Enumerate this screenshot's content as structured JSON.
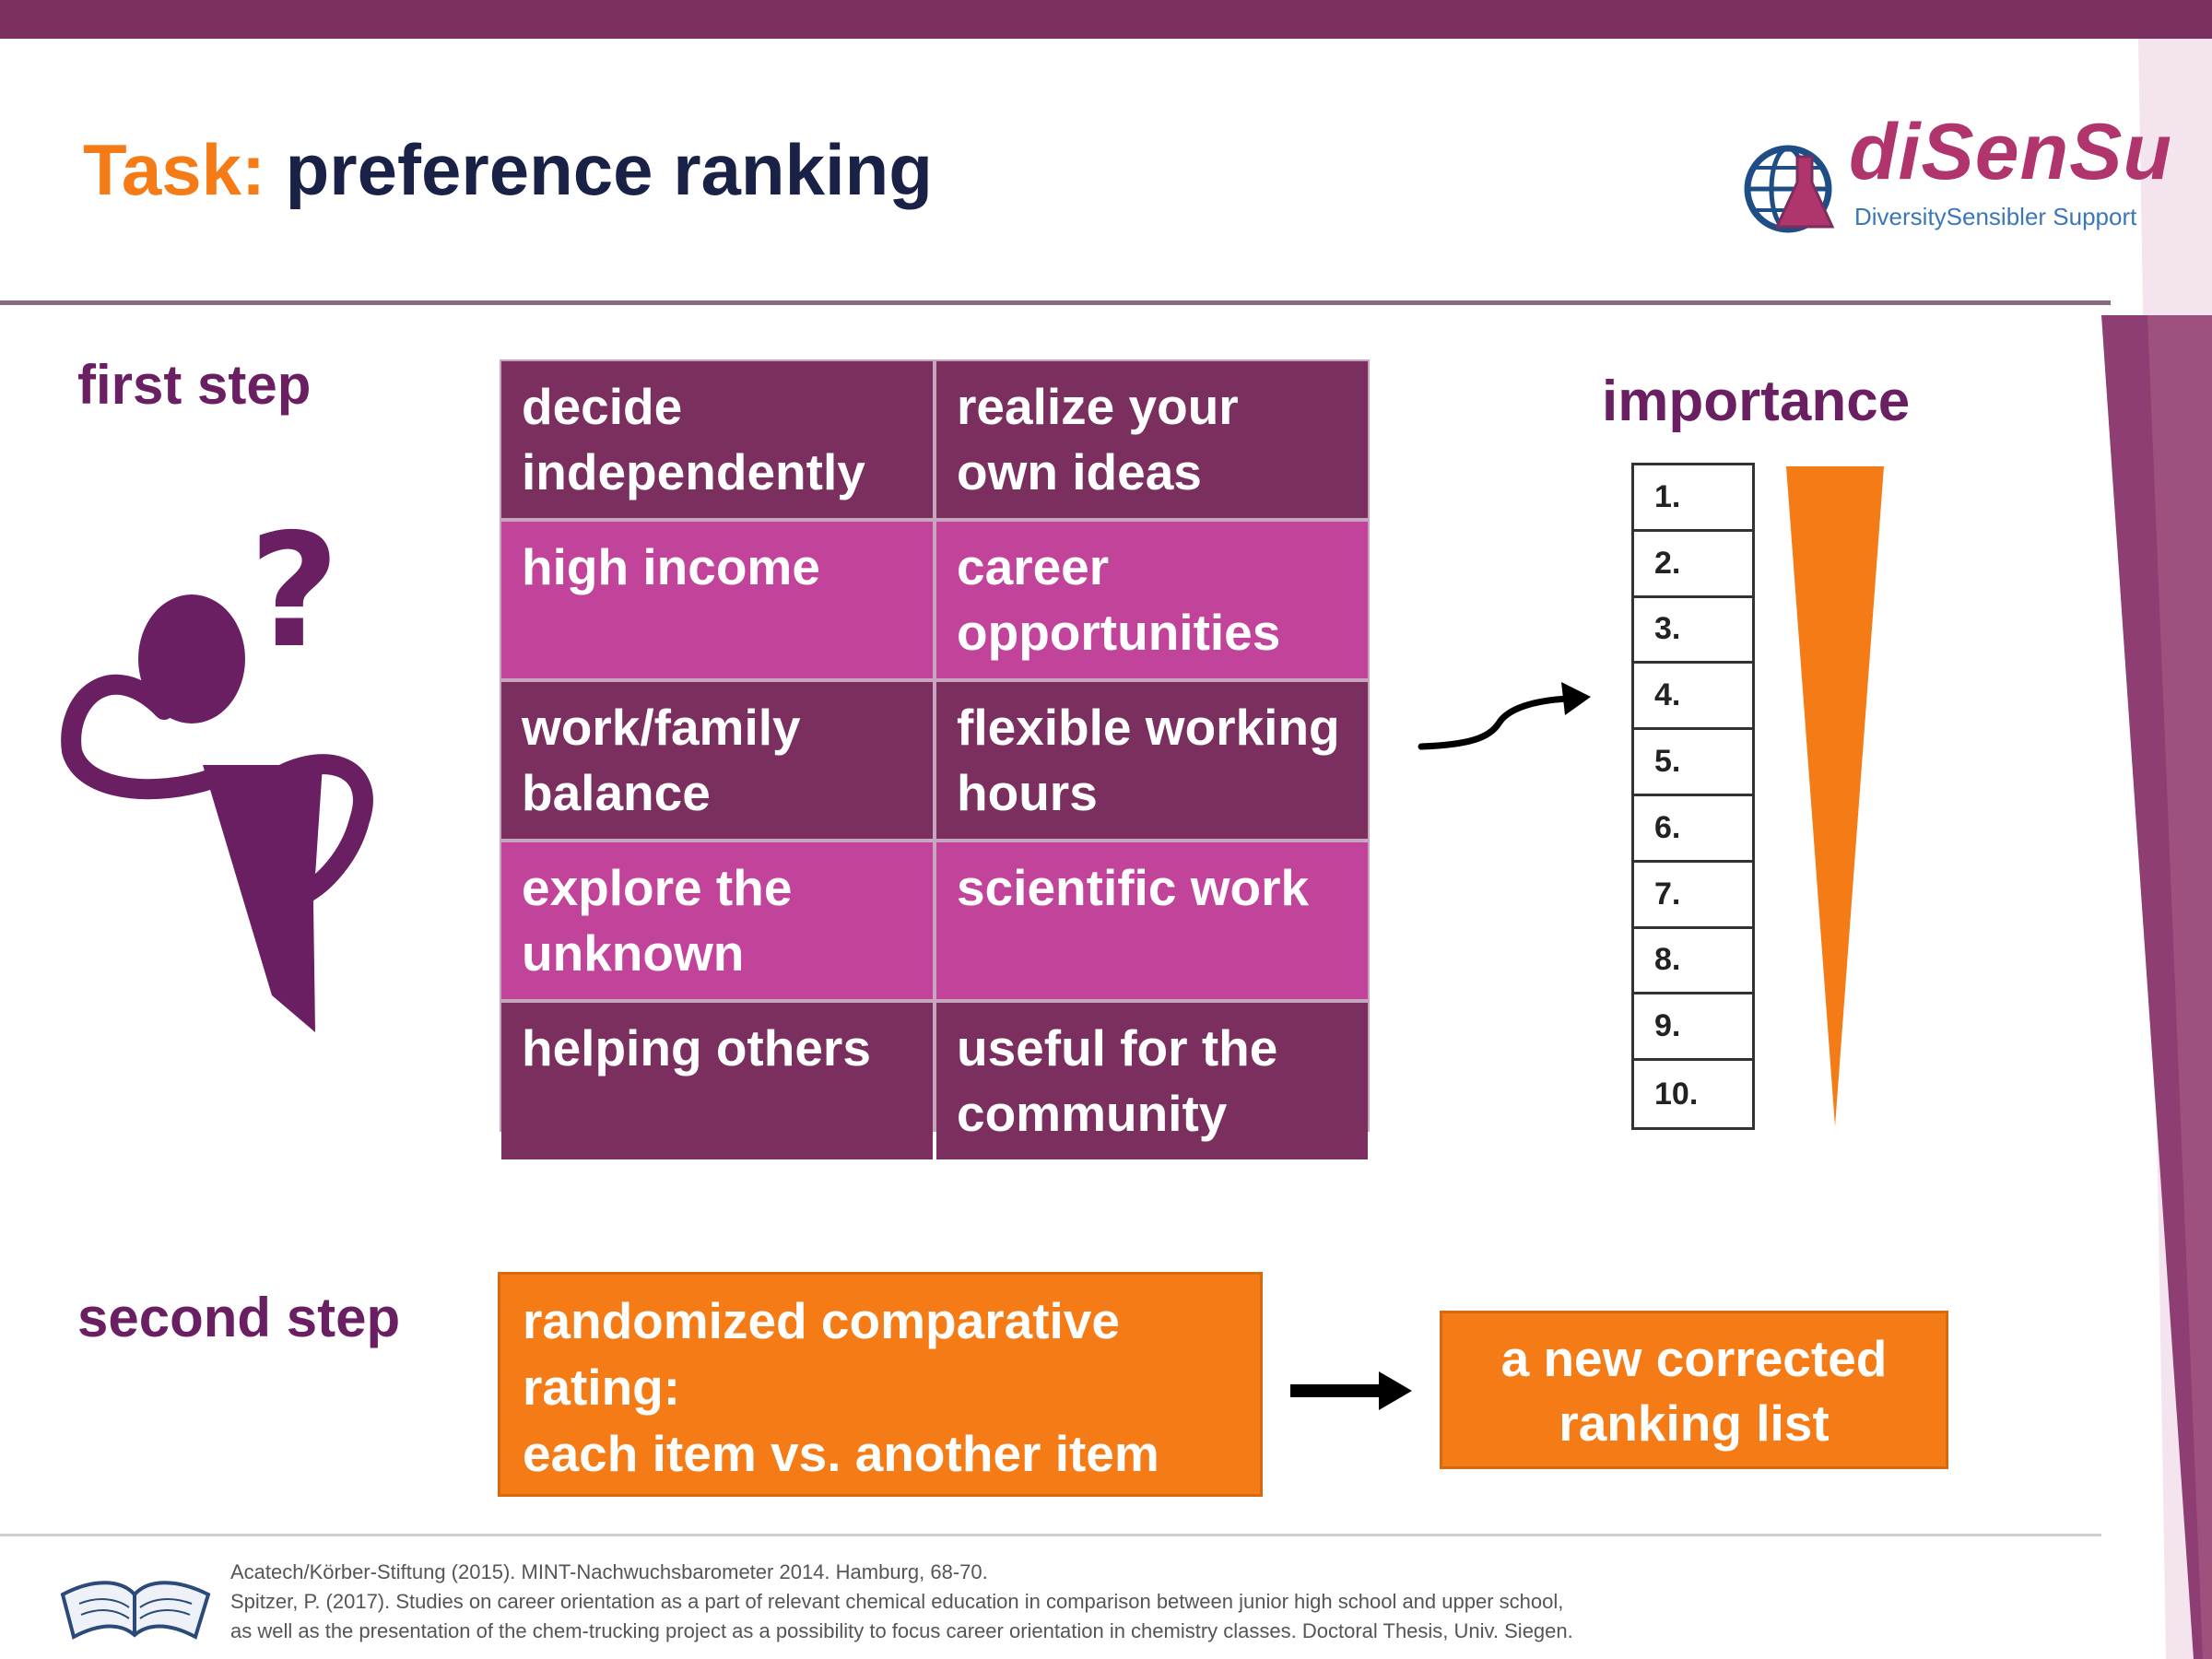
{
  "header": {
    "title_task": "Task:",
    "title_rest": "preference ranking",
    "logo_name": "diSenSu",
    "logo_subtitle": "DiversitySensibler Support"
  },
  "first_step": {
    "label": "first step",
    "items": [
      {
        "text": "decide independently",
        "tone": "dark"
      },
      {
        "text": "realize your own ideas",
        "tone": "dark"
      },
      {
        "text": "high income",
        "tone": "pink"
      },
      {
        "text": "career opportunities",
        "tone": "pink"
      },
      {
        "text": "work/family balance",
        "tone": "dark"
      },
      {
        "text": "flexible working hours",
        "tone": "dark"
      },
      {
        "text": "explore the unknown",
        "tone": "pink"
      },
      {
        "text": "scientific work",
        "tone": "pink"
      },
      {
        "text": "helping others",
        "tone": "dark"
      },
      {
        "text": "useful for the community",
        "tone": "dark"
      }
    ]
  },
  "importance": {
    "label": "importance",
    "ranks": [
      "1.",
      "2.",
      "3.",
      "4.",
      "5.",
      "6.",
      "7.",
      "8.",
      "9.",
      "10."
    ]
  },
  "second_step": {
    "label": "second step",
    "rating_line1": "randomized comparative",
    "rating_line2": "rating:",
    "rating_line3": "each item vs. another item",
    "result_line1": "a new corrected",
    "result_line2": "ranking list"
  },
  "references": {
    "line1": "Acatech/Körber-Stiftung (2015). MINT-Nachwuchsbarometer 2014. Hamburg, 68-70.",
    "line2": "Spitzer, P. (2017). Studies on career orientation as a part of relevant chemical education in comparison between junior high school and upper school,",
    "line3": "as well as the presentation of the chem-trucking project as a possibility to focus career orientation in chemistry classes. Doctoral Thesis, Univ. Siegen."
  },
  "colors": {
    "accent_orange": "#f57b16",
    "plum": "#7a2f5e",
    "pink": "#c2449a",
    "title_navy": "#1a2147"
  }
}
